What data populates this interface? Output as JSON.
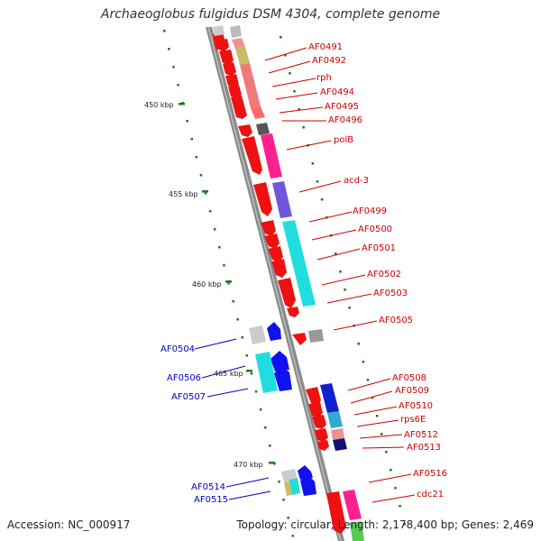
{
  "title": "Archaeoglobus fulgidus DSM 4304, complete genome",
  "footer": {
    "accession": "Accession: NC_000917",
    "summary": "Topology: circular; Length: 2,178,400 bp; Genes: 2,469"
  },
  "colors": {
    "forward_gene": "#ff0000",
    "reverse_gene": "#0000ff",
    "forward_label": "#cc0000",
    "reverse_label": "#0000bb",
    "backbone": "#888888",
    "ticks": "#1a7a1a"
  },
  "scale_labels": [
    "450 kbp",
    "455 kbp",
    "460 kbp",
    "465 kbp",
    "470 kbp"
  ],
  "right_labels": [
    "AF0491",
    "AF0492",
    "rph",
    "AF0494",
    "AF0495",
    "AF0496",
    "polB",
    "acd-3",
    "AF0499",
    "AF0500",
    "AF0501",
    "AF0502",
    "AF0503",
    "AF0505",
    "AF0508",
    "AF0509",
    "AF0510",
    "rps6E",
    "AF0512",
    "AF0513",
    "AF0516",
    "cdc21"
  ],
  "left_labels": [
    "AF0504",
    "AF0506",
    "AF0507",
    "AF0514",
    "AF0515"
  ]
}
